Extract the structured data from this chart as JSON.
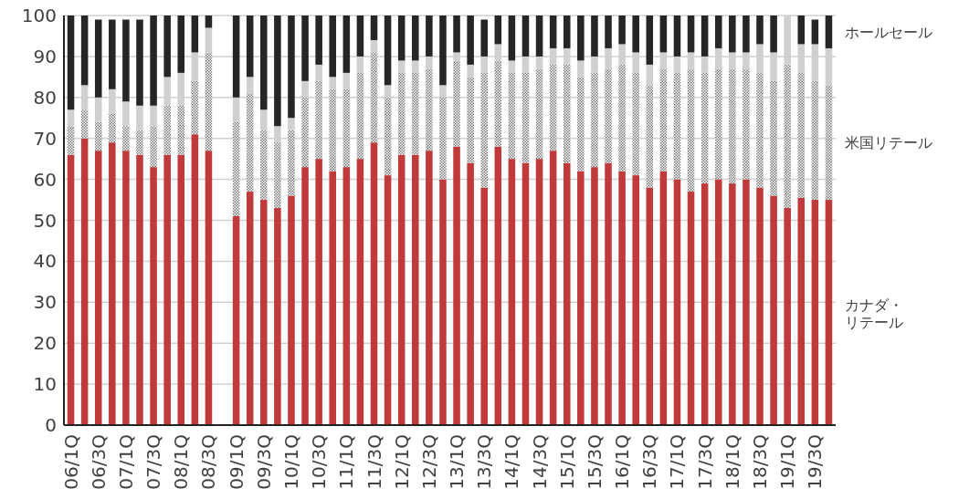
{
  "chart_data": {
    "type": "bar",
    "stacked": true,
    "categories": [
      "06/1Q",
      null,
      "06/3Q",
      null,
      "07/1Q",
      null,
      "07/3Q",
      null,
      "08/1Q",
      null,
      "08/3Q",
      null,
      "09/1Q",
      null,
      "09/3Q",
      null,
      "10/1Q",
      null,
      "10/3Q",
      null,
      "11/1Q",
      null,
      "11/3Q",
      null,
      "12/1Q",
      null,
      "12/3Q",
      null,
      "13/1Q",
      null,
      "13/3Q",
      null,
      "14/1Q",
      null,
      "14/3Q",
      null,
      "15/1Q",
      null,
      "15/3Q",
      null,
      "16/1Q",
      null,
      "16/3Q",
      null,
      "17/1Q",
      null,
      "17/3Q",
      null,
      "18/1Q",
      null,
      "18/3Q",
      null,
      "19/1Q",
      null,
      "19/3Q",
      null
    ],
    "ylim": [
      0,
      100
    ],
    "yticks": [
      0,
      10,
      20,
      30,
      40,
      50,
      60,
      70,
      80,
      90,
      100
    ],
    "grid": "y",
    "legend": "right",
    "series": [
      {
        "name": "カナダ・リテール",
        "color": "#c0393b",
        "values": [
          66,
          70,
          67,
          69,
          67,
          66,
          63,
          66,
          66,
          71,
          67,
          null,
          51,
          57,
          55,
          53,
          56,
          63,
          65,
          62,
          63,
          65,
          69,
          61,
          66,
          66,
          67,
          60,
          68,
          64,
          58,
          68,
          65,
          64,
          65,
          67,
          64,
          62,
          63,
          64,
          62,
          61,
          58,
          62,
          60,
          57,
          59,
          60,
          59,
          60,
          58,
          56,
          53,
          55.5,
          55,
          55
        ]
      },
      {
        "name": "米国リテール",
        "color": "#7a7a7a",
        "values": [
          7,
          7,
          7,
          7,
          6,
          6,
          10,
          12,
          12,
          13,
          24,
          null,
          23,
          24,
          17,
          16,
          16,
          17,
          19,
          20,
          19,
          21,
          22,
          19,
          20,
          20,
          20,
          20,
          21,
          21,
          28,
          21,
          21,
          22,
          22,
          21,
          24,
          23,
          23,
          23,
          26,
          25,
          25,
          25,
          26,
          30,
          27,
          27,
          28,
          27,
          28,
          28,
          35,
          30.5,
          29,
          28
        ]
      },
      {
        "color": "#d0d0d0",
        "values": [
          4,
          6,
          6,
          6,
          6,
          6,
          5,
          7,
          8,
          7,
          6,
          null,
          6,
          4,
          5,
          4,
          3,
          4,
          4,
          3,
          4,
          4,
          3,
          3,
          3,
          3,
          3,
          3,
          2,
          3,
          4,
          4,
          3,
          4,
          3,
          4,
          4,
          4,
          4,
          5,
          5,
          5,
          5,
          4,
          4,
          4,
          4,
          5,
          4,
          4,
          7,
          7,
          12,
          7,
          9,
          9
        ]
      },
      {
        "name": "ホールセール",
        "color": "#262626",
        "values": [
          23,
          17,
          19,
          17,
          20,
          21,
          22,
          15,
          14,
          9,
          3,
          null,
          20,
          15,
          23,
          27,
          25,
          16,
          12,
          15,
          14,
          10,
          6,
          17,
          11,
          11,
          10,
          17,
          9,
          12,
          9,
          7,
          11,
          10,
          10,
          8,
          8,
          11,
          10,
          8,
          7,
          9,
          12,
          9,
          10,
          9,
          10,
          8,
          9,
          9,
          7,
          9,
          0,
          7,
          6,
          8
        ]
      }
    ]
  }
}
